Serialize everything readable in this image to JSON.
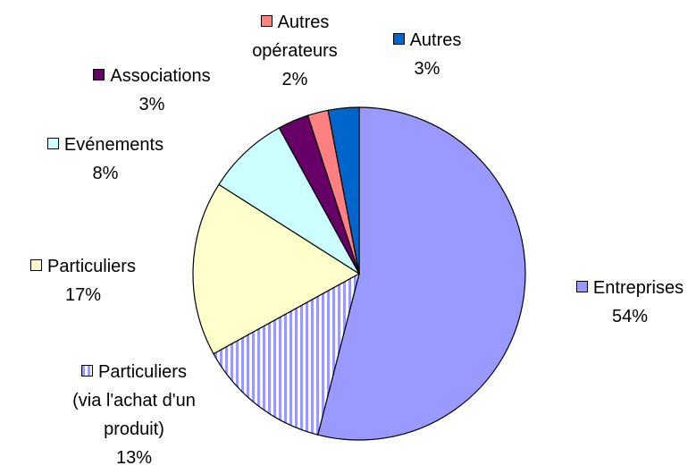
{
  "chart_data": {
    "type": "pie",
    "categories": [
      "Entreprises",
      "Particuliers (via l'achat d'un produit)",
      "Particuliers",
      "Evénements",
      "Associations",
      "Autres opérateurs",
      "Autres"
    ],
    "values": [
      54,
      13,
      17,
      8,
      3,
      2,
      3
    ],
    "value_labels": [
      "54%",
      "13%",
      "17%",
      "8%",
      "3%",
      "2%",
      "3%"
    ],
    "colors": [
      "#9999ff",
      "#ccccff",
      "#ffffcc",
      "#ccffff",
      "#660066",
      "#ff8080",
      "#0066cc"
    ],
    "hatch": [
      false,
      true,
      false,
      false,
      false,
      false,
      false
    ]
  }
}
